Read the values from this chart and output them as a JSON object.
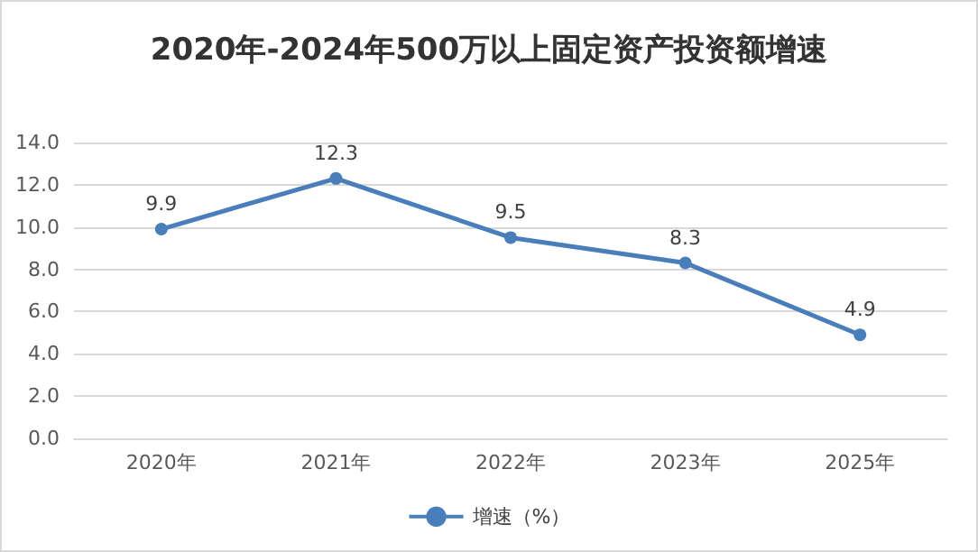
{
  "chart_data": {
    "type": "line",
    "title": "2020年-2024年500万以上固定资产投资额增速",
    "categories": [
      "2020年",
      "2021年",
      "2022年",
      "2023年",
      "2025年"
    ],
    "series": [
      {
        "name": "增速（%）",
        "color": "#4a7ebb",
        "values": [
          9.9,
          12.3,
          9.5,
          8.3,
          4.9
        ]
      }
    ],
    "ylim": [
      0,
      14
    ],
    "yticks": [
      {
        "value": 0,
        "label": "0.0"
      },
      {
        "value": 2,
        "label": "2.0"
      },
      {
        "value": 4,
        "label": "4.0"
      },
      {
        "value": 6,
        "label": "6.0"
      },
      {
        "value": 8,
        "label": "8.0"
      },
      {
        "value": 10,
        "label": "10.0"
      },
      {
        "value": 12,
        "label": "12.0"
      },
      {
        "value": 14,
        "label": "14.0"
      }
    ],
    "grid": "y",
    "legend": "bottom",
    "marker": "circle",
    "line_style": "solid",
    "data_labels": true
  }
}
